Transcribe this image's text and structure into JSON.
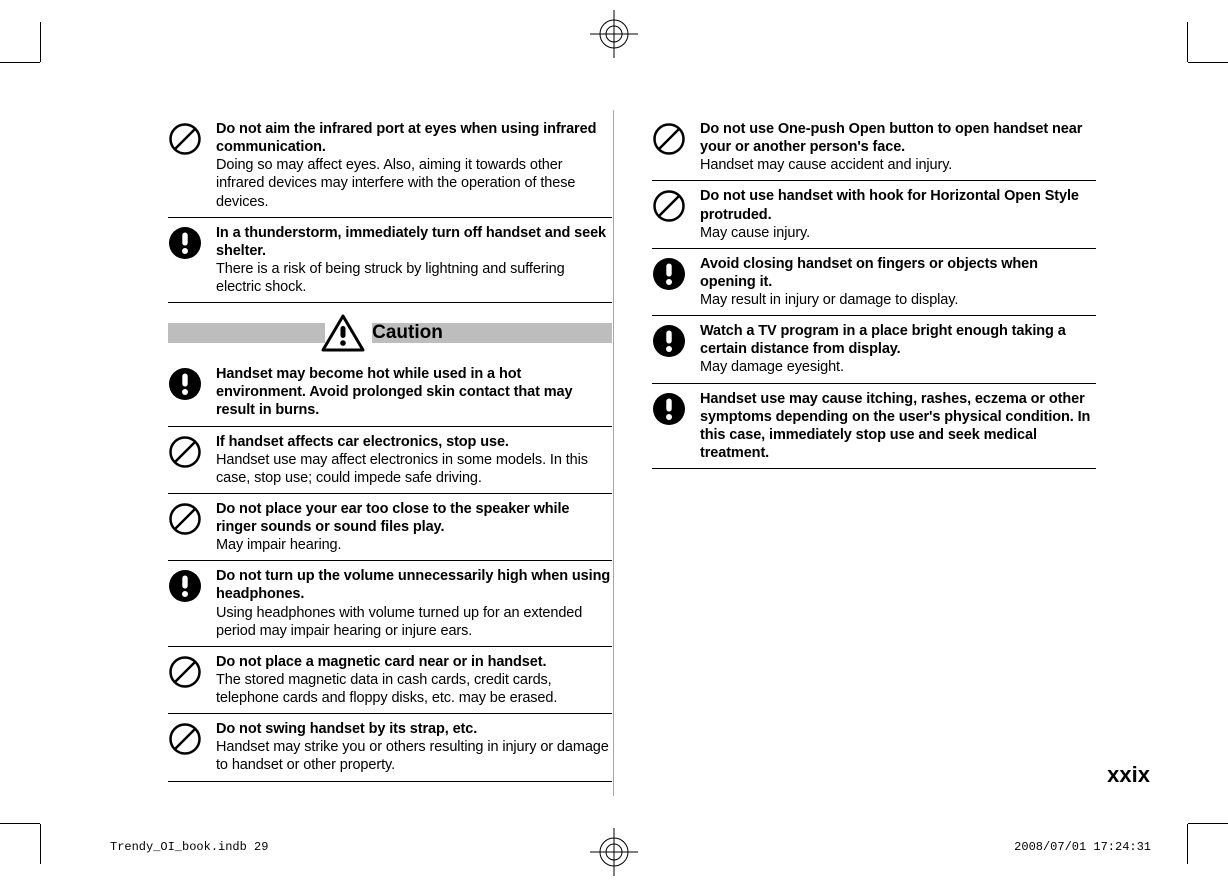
{
  "page_number": "xxix",
  "footer": {
    "file_and_page": "Trendy_OI_book.indb   29",
    "timestamp": "2008/07/01   17:24:31"
  },
  "caution_banner": {
    "label": "Caution"
  },
  "icons": {
    "prohibit": {
      "stroke": "#000000",
      "bg": "#ffffff"
    },
    "mandatory": {
      "fill": "#000000",
      "mark": "#ffffff"
    },
    "warning_triangle": {
      "stroke": "#000000",
      "bg": "#ffffff"
    }
  },
  "colors": {
    "text": "#000000",
    "divider": "#000000",
    "caution_bar": "#bdbdbd",
    "page_bg": "#ffffff"
  },
  "typography": {
    "body_font_size_pt": 11,
    "bold_weight": 700,
    "caution_font_size_pt": 14,
    "page_number_font_size_pt": 16
  },
  "left_col": [
    {
      "icon": "prohibit",
      "bold": "Do not aim the infrared port at eyes when using infrared communication.",
      "body": "Doing so may affect eyes. Also, aiming it towards other infrared devices may interfere with the operation of these devices."
    },
    {
      "icon": "mandatory",
      "bold": "In a thunderstorm, immediately turn off handset and seek shelter.",
      "body": "There is a risk of being struck by lightning and suffering electric shock."
    },
    {
      "section_header": true
    },
    {
      "icon": "mandatory",
      "bold": "Handset may become hot while used in a hot environment. Avoid prolonged skin contact that may result in burns.",
      "body": ""
    },
    {
      "icon": "prohibit",
      "bold": "If handset affects car electronics, stop use.",
      "body": "Handset use may affect electronics in some models. In this case, stop use; could impede safe driving."
    },
    {
      "icon": "prohibit",
      "bold": "Do not place your ear too close to the speaker while ringer sounds or sound files play.",
      "body": "May impair hearing."
    },
    {
      "icon": "mandatory",
      "bold": "Do not turn up the volume unnecessarily high when using headphones.",
      "body": "Using headphones with volume turned up for an extended period may impair hearing or injure ears."
    },
    {
      "icon": "prohibit",
      "bold": "Do not place a magnetic card near or in handset.",
      "body": "The stored magnetic data in cash cards, credit cards, telephone cards and floppy disks, etc. may be erased."
    },
    {
      "icon": "prohibit",
      "bold": "Do not swing handset by its strap, etc.",
      "body": "Handset may strike you or others resulting in injury or damage to handset or other property."
    }
  ],
  "right_col": [
    {
      "icon": "prohibit",
      "bold": "Do not use One-push Open button to open handset near your or another person's face.",
      "body": "Handset may cause accident and injury."
    },
    {
      "icon": "prohibit",
      "bold": "Do not use handset with hook for Horizontal Open Style protruded.",
      "body": "May cause injury."
    },
    {
      "icon": "mandatory",
      "bold": "Avoid closing handset on fingers or objects when opening it.",
      "body": "May result in injury or damage to display."
    },
    {
      "icon": "mandatory",
      "bold": "Watch a TV program in a place bright enough taking a certain distance from display.",
      "body": "May damage eyesight."
    },
    {
      "icon": "mandatory",
      "bold": "Handset use may cause itching, rashes, eczema or other symptoms depending on the user's physical condition. In this case, immediately stop use and seek medical treatment.",
      "body": ""
    }
  ]
}
